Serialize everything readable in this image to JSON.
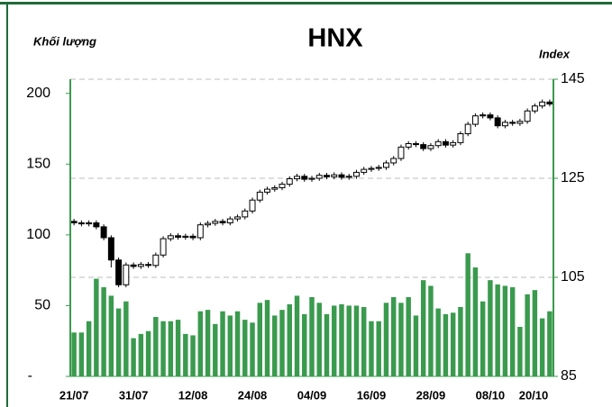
{
  "chart_data": {
    "type": "candlestick",
    "title": "HNX",
    "y_label": "Khối lượng",
    "y2_label": "Index",
    "categories": [
      "21/07",
      null,
      null,
      null,
      null,
      null,
      null,
      null,
      "31/07",
      null,
      null,
      null,
      null,
      null,
      null,
      null,
      "12/08",
      null,
      null,
      null,
      null,
      null,
      null,
      null,
      "24/08",
      null,
      null,
      null,
      null,
      null,
      null,
      null,
      "04/09",
      null,
      null,
      null,
      null,
      null,
      null,
      null,
      "16/09",
      null,
      null,
      null,
      null,
      null,
      null,
      null,
      "28/09",
      null,
      null,
      null,
      null,
      null,
      null,
      null,
      "08/10",
      null,
      null,
      null,
      null,
      null,
      null,
      null,
      "20/10"
    ],
    "volume": {
      "color": "#3a9a4e",
      "axis": "y",
      "values": [
        31,
        31,
        39,
        69,
        63,
        57,
        48,
        53,
        27,
        30,
        32,
        42,
        39,
        39,
        40,
        30,
        29,
        46,
        47,
        37,
        46,
        43,
        46,
        40,
        38,
        52,
        54,
        43,
        47,
        51,
        57,
        44,
        56,
        52,
        44,
        50,
        51,
        50,
        50,
        49,
        39,
        39,
        52,
        56,
        52,
        56,
        43,
        68,
        64,
        48,
        44,
        45,
        49,
        87,
        77,
        53,
        68,
        65,
        64,
        63,
        35,
        58,
        61,
        41,
        46
      ]
    },
    "index": {
      "axis": "y2",
      "up_color": "#ffffff",
      "down_color": "#000000",
      "open": [
        116.3,
        116.0,
        115.8,
        116.0,
        115.2,
        113.0,
        108.5,
        103.5,
        107.5,
        107.2,
        107.6,
        107.4,
        109.5,
        112.8,
        113.4,
        113.1,
        113.3,
        113.0,
        115.6,
        115.9,
        116.3,
        116.0,
        116.8,
        117.2,
        118.4,
        120.6,
        122.2,
        122.8,
        123.1,
        123.8,
        124.9,
        125.4,
        124.8,
        125.0,
        125.6,
        125.3,
        125.7,
        125.2,
        125.4,
        126.2,
        126.8,
        127.0,
        127.2,
        128.1,
        129.0,
        131.3,
        132.0,
        131.8,
        131.0,
        131.6,
        132.4,
        131.7,
        132.2,
        134.0,
        135.9,
        137.6,
        137.8,
        137.2,
        135.6,
        136.3,
        136.1,
        136.5,
        138.6,
        139.6,
        140.4
      ],
      "high": [
        116.8,
        116.5,
        116.5,
        116.5,
        115.7,
        113.5,
        109.0,
        108.0,
        108.0,
        108.1,
        108.1,
        110.0,
        113.3,
        113.9,
        113.9,
        113.8,
        113.8,
        116.1,
        116.4,
        116.8,
        116.8,
        117.3,
        117.7,
        118.9,
        121.1,
        122.7,
        123.3,
        123.6,
        124.3,
        125.4,
        125.9,
        125.9,
        125.5,
        126.1,
        126.1,
        126.2,
        126.2,
        125.9,
        126.7,
        127.3,
        127.5,
        127.7,
        128.6,
        129.5,
        131.8,
        132.5,
        132.5,
        132.3,
        132.1,
        132.9,
        132.9,
        132.7,
        134.5,
        136.4,
        138.1,
        138.3,
        138.3,
        137.7,
        136.8,
        136.8,
        137.0,
        139.1,
        140.1,
        140.9,
        140.9
      ],
      "low": [
        115.5,
        115.3,
        115.3,
        114.7,
        112.5,
        107.0,
        103.0,
        103.0,
        106.7,
        106.7,
        106.9,
        106.9,
        109.0,
        112.3,
        112.6,
        112.6,
        112.5,
        112.5,
        115.1,
        115.4,
        115.5,
        115.5,
        116.3,
        116.7,
        117.9,
        120.1,
        121.7,
        122.3,
        122.6,
        123.3,
        124.4,
        124.3,
        124.3,
        124.5,
        124.8,
        124.8,
        124.7,
        124.7,
        124.9,
        125.7,
        126.3,
        126.5,
        126.7,
        127.6,
        128.5,
        130.8,
        131.3,
        130.5,
        130.5,
        131.1,
        131.2,
        131.2,
        131.7,
        133.5,
        135.4,
        137.1,
        136.7,
        135.1,
        135.1,
        135.6,
        135.6,
        136.0,
        138.1,
        139.1,
        139.5
      ],
      "close": [
        116.0,
        115.8,
        116.0,
        115.2,
        113.0,
        108.5,
        103.5,
        107.5,
        107.2,
        107.6,
        107.4,
        109.5,
        112.8,
        113.4,
        113.1,
        113.3,
        113.0,
        115.6,
        115.9,
        116.3,
        116.0,
        116.8,
        117.2,
        118.4,
        120.6,
        122.2,
        122.8,
        123.1,
        123.8,
        124.9,
        125.4,
        124.8,
        125.0,
        125.6,
        125.3,
        125.7,
        125.2,
        125.4,
        126.2,
        126.8,
        127.0,
        127.2,
        128.1,
        129.0,
        131.3,
        132.0,
        131.8,
        131.0,
        131.6,
        132.4,
        131.7,
        132.2,
        134.0,
        135.9,
        137.6,
        137.8,
        137.2,
        135.6,
        136.3,
        136.1,
        136.5,
        138.6,
        139.6,
        140.4,
        140.0
      ]
    },
    "ylim": [
      0,
      210
    ],
    "yticks": [
      {
        "value": 0,
        "label": "-"
      },
      50,
      100,
      150,
      200
    ],
    "y2lim": [
      85,
      145
    ],
    "y2ticks": [
      85,
      105,
      125,
      145
    ],
    "grid": true,
    "axis_color": "#3a9a4e",
    "frame_color": "#1f6b3a"
  }
}
